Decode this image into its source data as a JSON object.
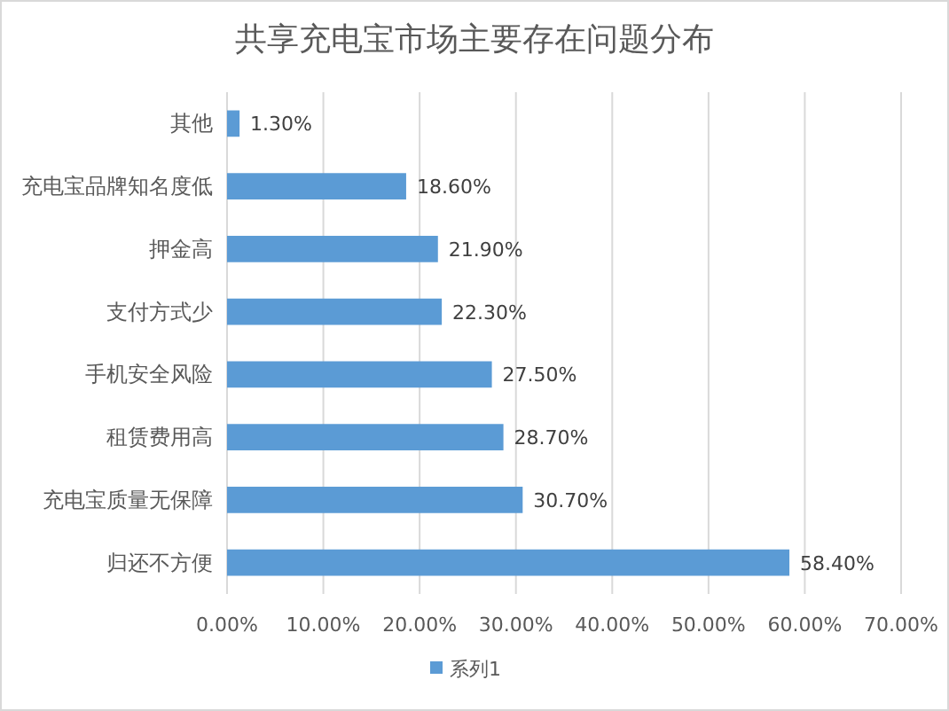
{
  "chart_data": {
    "type": "bar",
    "orientation": "horizontal",
    "title": "共享充电宝市场主要存在问题分布",
    "categories": [
      "其他",
      "充电宝品牌知名度低",
      "押金高",
      "支付方式少",
      "手机安全风险",
      "租赁费用高",
      "充电宝质量无保障",
      "归还不方便"
    ],
    "series": [
      {
        "name": "系列1",
        "color": "#5b9bd5",
        "values": [
          1.3,
          18.6,
          21.9,
          22.3,
          27.5,
          28.7,
          30.7,
          58.4
        ],
        "value_labels": [
          "1.30%",
          "18.60%",
          "21.90%",
          "22.30%",
          "27.50%",
          "28.70%",
          "30.70%",
          "58.40%"
        ]
      }
    ],
    "xlim": [
      0,
      70
    ],
    "xticks": [
      {
        "value": 0,
        "label": "0.00%"
      },
      {
        "value": 10,
        "label": "10.00%"
      },
      {
        "value": 20,
        "label": "20.00%"
      },
      {
        "value": 30,
        "label": "30.00%"
      },
      {
        "value": 40,
        "label": "40.00%"
      },
      {
        "value": 50,
        "label": "50.00%"
      },
      {
        "value": 60,
        "label": "60.00%"
      },
      {
        "value": 70,
        "label": "70.00%"
      }
    ],
    "grid": "x",
    "legend": "bottom"
  }
}
